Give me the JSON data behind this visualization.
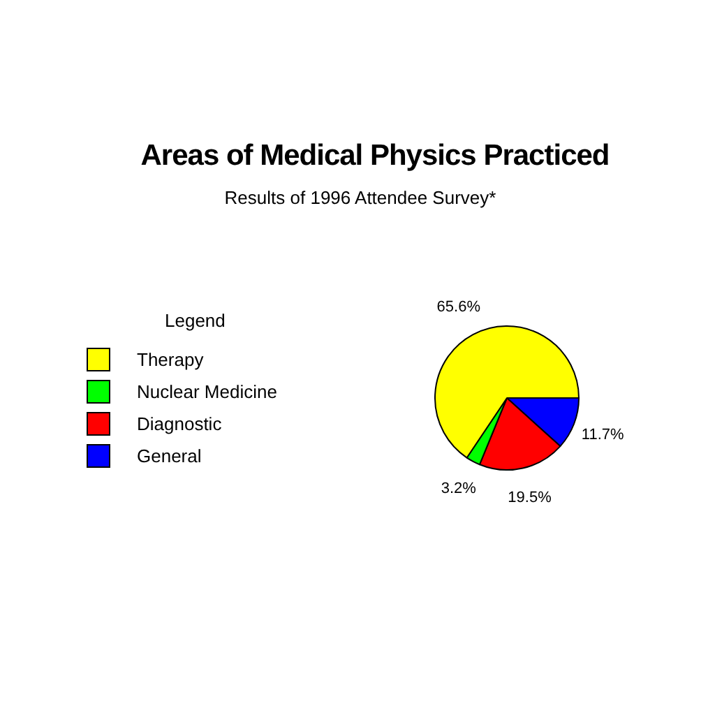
{
  "chart_data": {
    "type": "pie",
    "title": "Areas of Medical Physics Practiced",
    "subtitle": "Results of 1996 Attendee Survey*",
    "legend_title": "Legend",
    "legend": "left",
    "categories": [
      "Therapy",
      "Nuclear Medicine",
      "Diagnostic",
      "General"
    ],
    "values": [
      65.6,
      3.2,
      19.5,
      11.7
    ],
    "colors": [
      "#ffff00",
      "#00ff00",
      "#ff0000",
      "#0000ff"
    ],
    "value_labels": [
      "65.6%",
      "3.2%",
      "19.5%",
      "11.7%"
    ]
  }
}
